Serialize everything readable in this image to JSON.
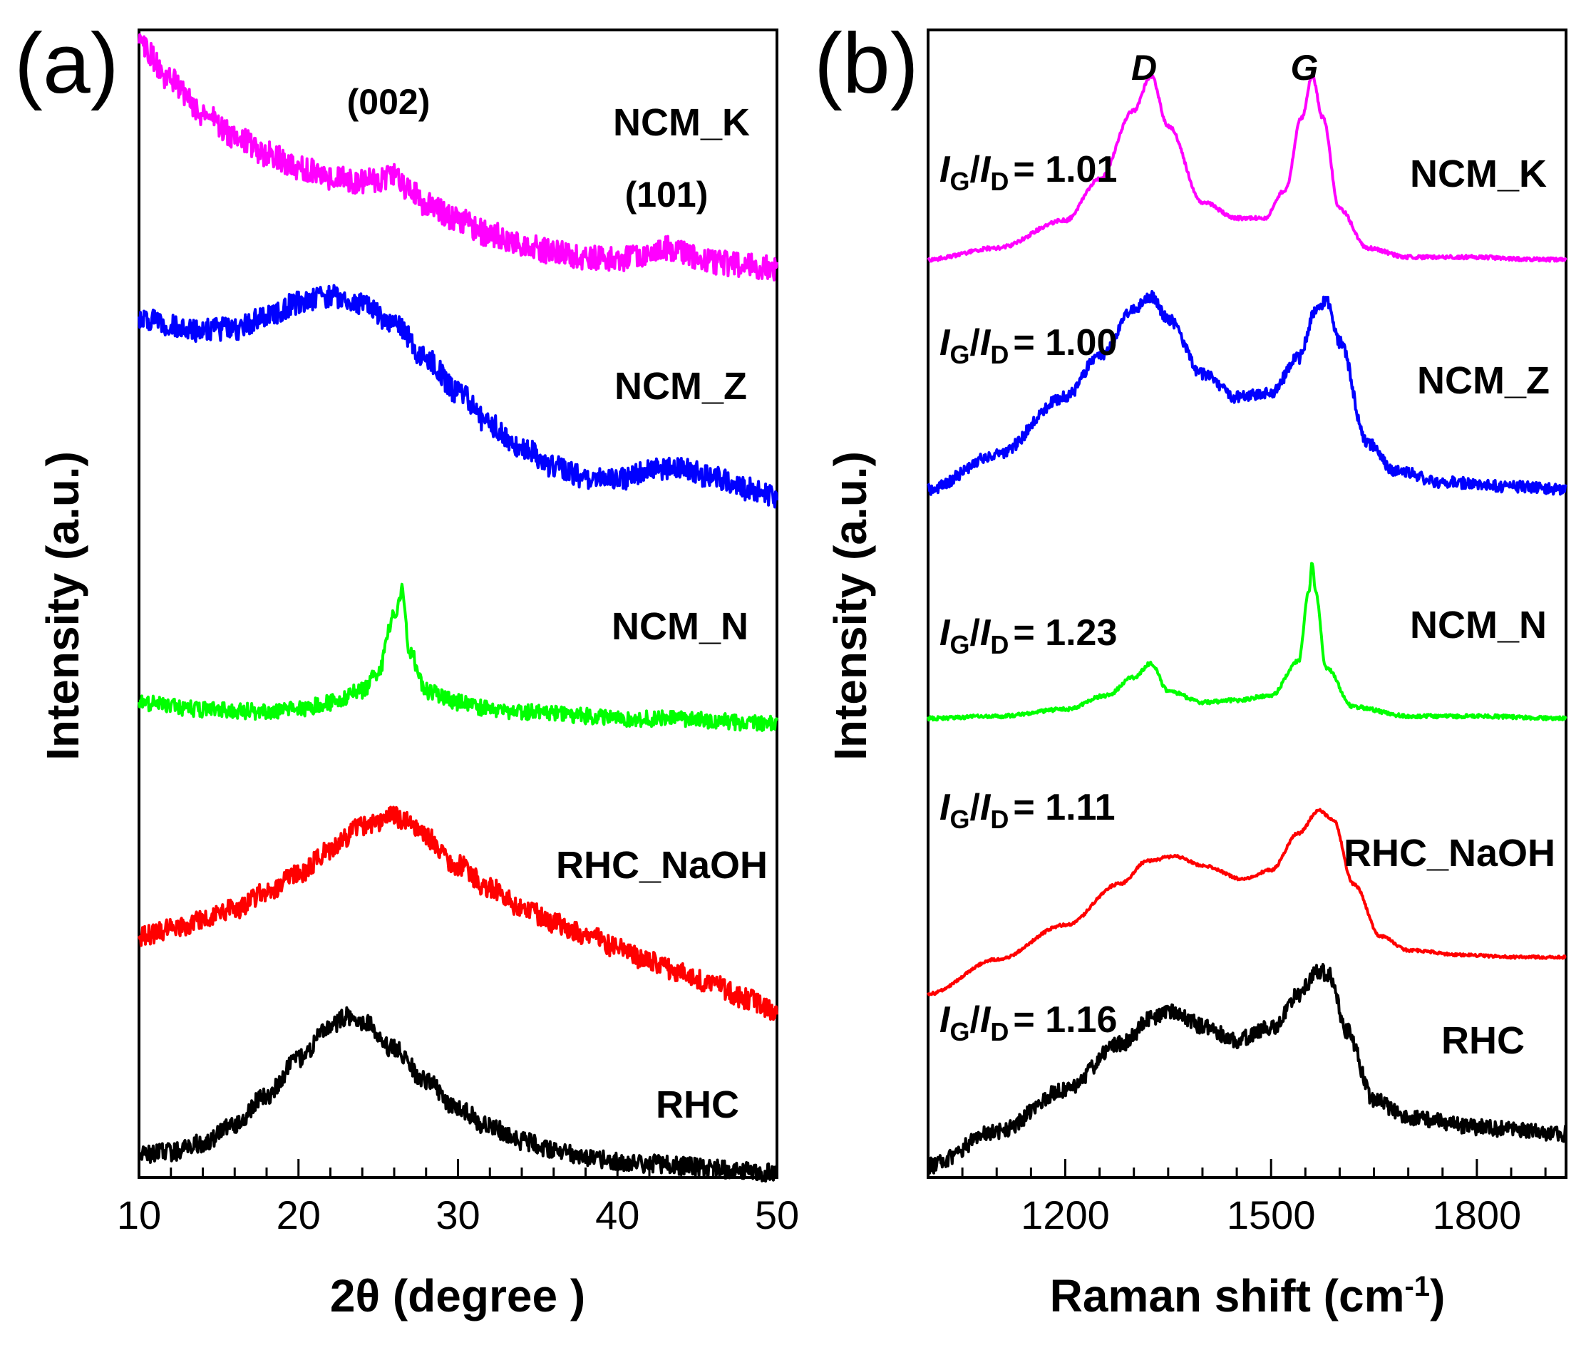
{
  "figure": {
    "panel_a_label": "(a)",
    "panel_b_label": "(b)"
  },
  "chart_data": [
    {
      "type": "line",
      "panel": "(a)",
      "title": "",
      "xlabel": "2θ (degree )",
      "ylabel": "Intensity (a.u.)",
      "xlim": [
        10,
        50
      ],
      "xticks": [
        10,
        20,
        30,
        40,
        50
      ],
      "ylim": [
        0,
        5
      ],
      "yticks": [],
      "grid": false,
      "legend": "labels beside each curve",
      "peak_annotations": [
        {
          "text": "(002)",
          "x": 26
        },
        {
          "text": "(101)",
          "x": 43
        }
      ],
      "series": [
        {
          "name": "NCM_K",
          "color": "#ff00ff",
          "x": [
            10,
            12,
            14,
            16,
            18,
            20,
            22,
            24,
            25,
            26,
            27,
            28,
            30,
            32,
            34,
            36,
            38,
            40,
            42,
            43,
            44,
            46,
            48,
            50
          ],
          "y": [
            4.94,
            4.78,
            4.64,
            4.54,
            4.46,
            4.4,
            4.36,
            4.34,
            4.35,
            4.37,
            4.3,
            4.24,
            4.17,
            4.11,
            4.07,
            4.03,
            4.01,
            4.0,
            4.02,
            4.05,
            4.03,
            3.99,
            3.97,
            3.96
          ]
        },
        {
          "name": "NCM_Z",
          "color": "#0000ff",
          "x": [
            10,
            12,
            14,
            16,
            18,
            20,
            22,
            24,
            26,
            28,
            30,
            32,
            34,
            36,
            38,
            40,
            42,
            44,
            46,
            48,
            50
          ],
          "y": [
            3.75,
            3.71,
            3.69,
            3.7,
            3.75,
            3.81,
            3.84,
            3.81,
            3.72,
            3.57,
            3.42,
            3.28,
            3.18,
            3.1,
            3.05,
            3.04,
            3.08,
            3.09,
            3.05,
            3.0,
            2.97
          ]
        },
        {
          "name": "NCM_N",
          "color": "#00ff00",
          "x": [
            10,
            14,
            18,
            20,
            22,
            24,
            25,
            26,
            26.5,
            27,
            28,
            30,
            32,
            34,
            36,
            38,
            40,
            42,
            44,
            46,
            48,
            50
          ],
          "y": [
            2.07,
            2.04,
            2.03,
            2.04,
            2.07,
            2.12,
            2.2,
            2.45,
            2.55,
            2.28,
            2.12,
            2.07,
            2.04,
            2.03,
            2.02,
            2.01,
            2.0,
            2.0,
            2.0,
            1.99,
            1.98,
            1.98
          ]
        },
        {
          "name": "RHC_NaOH",
          "color": "#ff0000",
          "x": [
            10,
            12,
            14,
            16,
            18,
            20,
            22,
            24,
            26,
            27,
            28,
            30,
            32,
            34,
            36,
            38,
            40,
            42,
            44,
            46,
            48,
            50
          ],
          "y": [
            1.05,
            1.08,
            1.12,
            1.17,
            1.24,
            1.32,
            1.43,
            1.53,
            1.57,
            1.55,
            1.48,
            1.36,
            1.26,
            1.18,
            1.11,
            1.06,
            1.0,
            0.94,
            0.89,
            0.84,
            0.78,
            0.72
          ]
        },
        {
          "name": "RHC",
          "color": "#000000",
          "x": [
            10,
            12,
            14,
            16,
            18,
            20,
            22,
            23,
            24,
            26,
            28,
            30,
            32,
            34,
            36,
            38,
            40,
            42,
            44,
            46,
            48,
            50
          ],
          "y": [
            0.1,
            0.11,
            0.15,
            0.23,
            0.36,
            0.52,
            0.66,
            0.7,
            0.68,
            0.56,
            0.42,
            0.3,
            0.22,
            0.16,
            0.12,
            0.09,
            0.07,
            0.06,
            0.05,
            0.04,
            0.03,
            0.02
          ]
        }
      ],
      "series_labels": [
        {
          "series": "NCM_K",
          "text": "NCM_K"
        },
        {
          "series": "NCM_Z",
          "text": "NCM_Z"
        },
        {
          "series": "NCM_N",
          "text": "NCM_N"
        },
        {
          "series": "RHC_NaOH",
          "text": "RHC_NaOH"
        },
        {
          "series": "RHC",
          "text": "RHC"
        }
      ]
    },
    {
      "type": "line",
      "panel": "(b)",
      "title": "",
      "xlabel": "Raman shift (cm",
      "xlabel_sup": "-1",
      "xlabel_end": ")",
      "ylabel": "Intensity (a.u.)",
      "xlim": [
        1000,
        1930
      ],
      "xticks": [
        1200,
        1500,
        1800
      ],
      "ylim": [
        0,
        5
      ],
      "yticks": [],
      "grid": false,
      "legend": "labels beside each curve",
      "peak_annotations": [
        {
          "text": "D",
          "x": 1325
        },
        {
          "text": "G",
          "x": 1560
        }
      ],
      "ratio_parts": {
        "i": "I",
        "g": "G",
        "slash": "/",
        "d": "D"
      },
      "series": [
        {
          "name": "NCM_K",
          "color": "#ff00ff",
          "ratio": "= 1.01",
          "x": [
            1000,
            1100,
            1200,
            1250,
            1300,
            1325,
            1350,
            1400,
            1450,
            1490,
            1520,
            1545,
            1560,
            1575,
            1600,
            1640,
            1700,
            1800,
            1880,
            1930
          ],
          "y": [
            4.0,
            4.05,
            4.17,
            4.35,
            4.65,
            4.8,
            4.58,
            4.25,
            4.18,
            4.18,
            4.3,
            4.62,
            4.8,
            4.62,
            4.22,
            4.05,
            4.01,
            4.01,
            4.0,
            4.0
          ]
        },
        {
          "name": "NCM_Z",
          "color": "#0000ff",
          "ratio": "= 1.00",
          "x": [
            1000,
            1100,
            1200,
            1250,
            1300,
            1325,
            1350,
            1400,
            1450,
            1500,
            1540,
            1565,
            1580,
            1600,
            1640,
            1680,
            1750,
            1850,
            1930
          ],
          "y": [
            3.0,
            3.15,
            3.4,
            3.58,
            3.78,
            3.84,
            3.74,
            3.5,
            3.4,
            3.42,
            3.57,
            3.78,
            3.82,
            3.64,
            3.2,
            3.08,
            3.03,
            3.01,
            3.0
          ]
        },
        {
          "name": "NCM_N",
          "color": "#00ff00",
          "ratio": "= 1.23",
          "x": [
            1000,
            1100,
            1200,
            1260,
            1300,
            1325,
            1350,
            1400,
            1450,
            1500,
            1540,
            1555,
            1560,
            1565,
            1580,
            1620,
            1700,
            1800,
            1930
          ],
          "y": [
            2.0,
            2.01,
            2.04,
            2.1,
            2.18,
            2.24,
            2.12,
            2.07,
            2.08,
            2.1,
            2.25,
            2.55,
            2.68,
            2.55,
            2.22,
            2.05,
            2.01,
            2.01,
            2.0
          ]
        },
        {
          "name": "RHC_NaOH",
          "color": "#ff0000",
          "ratio": "= 1.11",
          "x": [
            1000,
            1100,
            1200,
            1280,
            1320,
            1360,
            1400,
            1460,
            1500,
            1540,
            1570,
            1590,
            1620,
            1660,
            1700,
            1780,
            1860,
            1930
          ],
          "y": [
            0.8,
            0.95,
            1.1,
            1.28,
            1.38,
            1.4,
            1.36,
            1.3,
            1.34,
            1.5,
            1.6,
            1.56,
            1.28,
            1.05,
            0.99,
            0.97,
            0.96,
            0.96
          ]
        },
        {
          "name": "RHC",
          "color": "#000000",
          "ratio": "= 1.16",
          "x": [
            1000,
            1100,
            1200,
            1280,
            1330,
            1360,
            1400,
            1450,
            1500,
            1540,
            1570,
            1585,
            1610,
            1650,
            1700,
            1800,
            1880,
            1930
          ],
          "y": [
            0.05,
            0.2,
            0.38,
            0.58,
            0.7,
            0.72,
            0.66,
            0.6,
            0.65,
            0.8,
            0.9,
            0.88,
            0.64,
            0.34,
            0.26,
            0.22,
            0.2,
            0.19
          ]
        }
      ],
      "series_labels": [
        {
          "series": "NCM_K",
          "text": "NCM_K"
        },
        {
          "series": "NCM_Z",
          "text": "NCM_Z"
        },
        {
          "series": "NCM_N",
          "text": "NCM_N"
        },
        {
          "series": "RHC_NaOH",
          "text": "RHC_NaOH"
        },
        {
          "series": "RHC",
          "text": "RHC"
        }
      ]
    }
  ]
}
